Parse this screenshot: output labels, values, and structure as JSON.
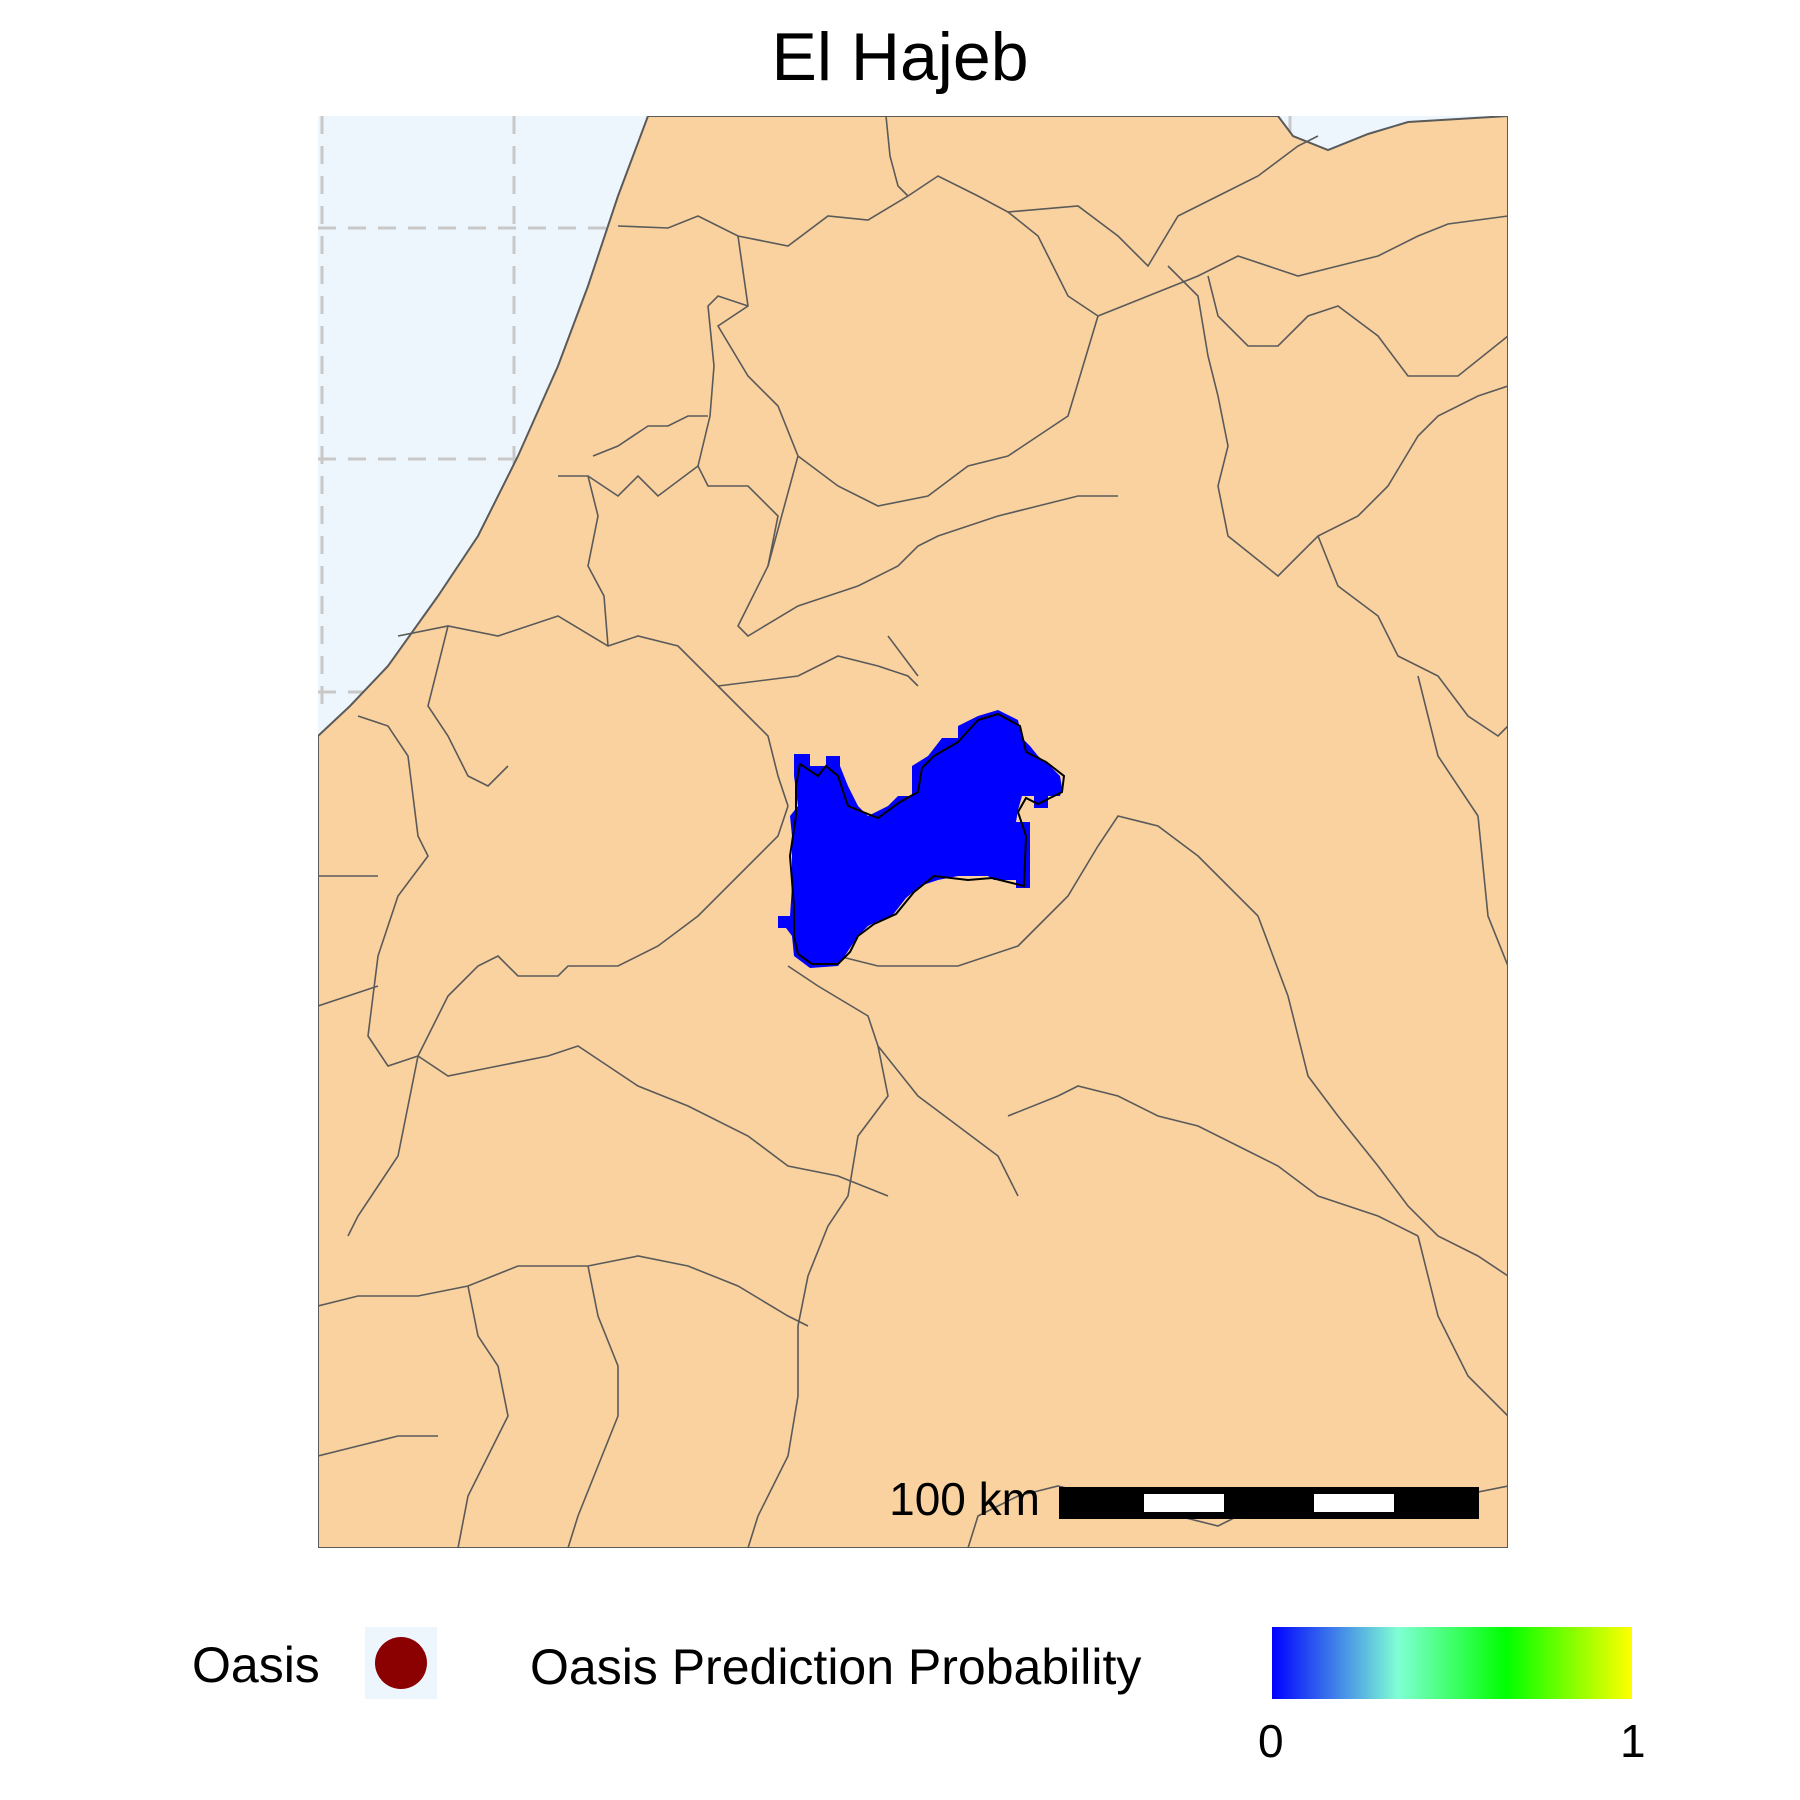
{
  "title": "El Hajeb",
  "map": {
    "colors": {
      "sea": "#eef6fd",
      "land": "#fad29f",
      "border": "#5a5a5a",
      "graticule": "#c8c8c8",
      "prediction": "#0000ff",
      "oasis_marker": "#8b0000"
    },
    "scale_bar": {
      "label": "100 km",
      "segments": 5
    }
  },
  "legend": {
    "oasis_label": "Oasis",
    "oasis_icon": "oasis-dot-icon",
    "colorbar_title": "Oasis Prediction Probability",
    "colorbar_min": "0",
    "colorbar_max": "1",
    "colorbar_stops": [
      "#0000ff",
      "#7fffd4",
      "#00ff00",
      "#ffff00"
    ]
  }
}
